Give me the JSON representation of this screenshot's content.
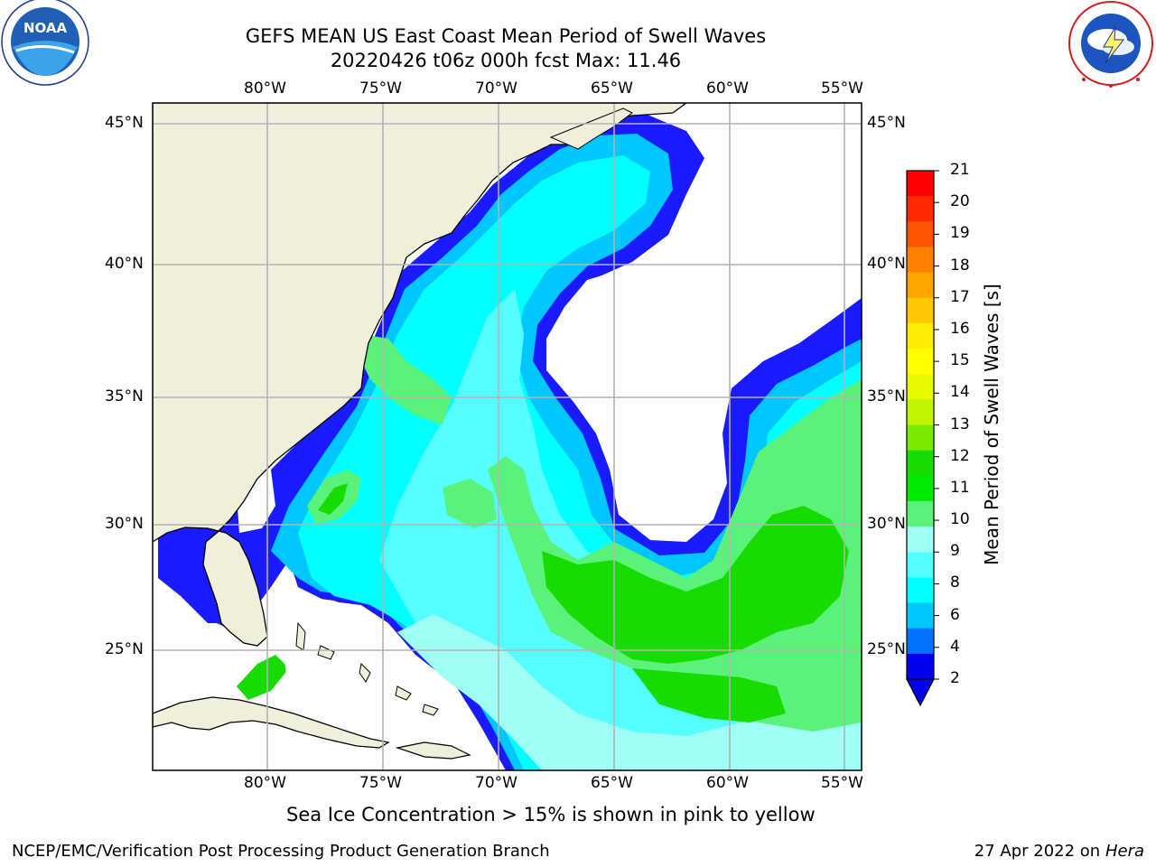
{
  "title": {
    "line1": "GEFS MEAN US East Coast Mean Period of Swell Waves",
    "line2": "20220426 t06z 000h fcst   Max: 11.46"
  },
  "logos": {
    "left": "NOAA",
    "left_ring": "NATIONAL OCEANIC AND ATMOSPHERIC ADMINISTRATION · U.S. DEPARTMENT OF COMMERCE",
    "right_ring": "NATIONAL WEATHER SERVICE"
  },
  "axes": {
    "lon_labels": [
      "80°W",
      "75°W",
      "70°W",
      "65°W",
      "60°W",
      "55°W"
    ],
    "lat_labels": [
      "45°N",
      "40°N",
      "35°N",
      "30°N",
      "25°N"
    ]
  },
  "colorbar": {
    "label": "Mean Period of Swell Waves [s]",
    "ticks": [
      "21",
      "20",
      "19",
      "18",
      "17",
      "16",
      "15",
      "14",
      "13",
      "12",
      "11",
      "10",
      "9",
      "8",
      "6",
      "4",
      "2"
    ],
    "colors": [
      "#ff0000",
      "#ff2a00",
      "#ff5500",
      "#ff7f00",
      "#ffa500",
      "#ffc800",
      "#ffec00",
      "#fffe00",
      "#e6fa00",
      "#bff500",
      "#7bea00",
      "#18dc00",
      "#00e900",
      "#5af27a",
      "#9ffff5",
      "#55ffff",
      "#00ffff",
      "#00c8ff",
      "#0073ff",
      "#0000ee"
    ]
  },
  "note": "Sea Ice Concentration > 15% is shown in pink to yellow",
  "footer": {
    "left": "NCEP/EMC/Verification Post Processing Product Generation Branch",
    "right_date": "27 Apr 2022 on ",
    "right_machine": "Hera"
  }
}
